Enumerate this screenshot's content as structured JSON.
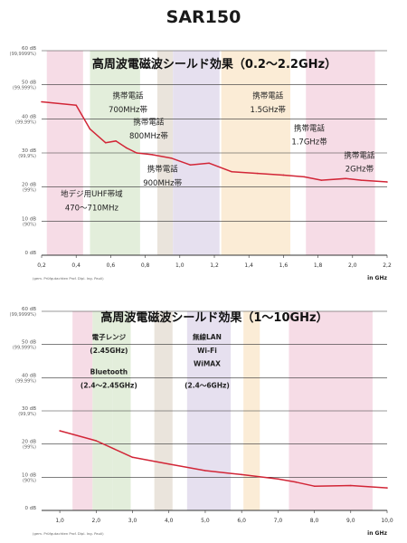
{
  "title": "SAR150",
  "colors": {
    "line": "#d22637",
    "grid": "#333333",
    "band_pink": "#f6dce6",
    "band_green": "#e3eedb",
    "band_beige": "#eae4dc",
    "band_lavender": "#e6e0ef",
    "band_peach": "#fbecd6"
  },
  "chart_data": [
    {
      "type": "line",
      "title": "高周波電磁波シールド効果（0.2～2.2GHz）",
      "x_unit": "in GHz",
      "credit": "(gem. Prüfgutachten Prof. Dipl. Ing. Pauli)",
      "xlim": [
        0.2,
        2.2
      ],
      "ylim": [
        0,
        60
      ],
      "x_ticks": [
        0.2,
        0.4,
        0.6,
        0.8,
        1.0,
        1.2,
        1.4,
        1.6,
        1.8,
        2.0,
        2.2
      ],
      "x_tick_labels": [
        "0,2",
        "0,4",
        "0,6",
        "0,8",
        "1,0",
        "1,2",
        "1,4",
        "1,6",
        "1,8",
        "2,0",
        "2,2"
      ],
      "y_ticks": [
        {
          "value": 0,
          "label": "0 dB",
          "sub": ""
        },
        {
          "value": 10,
          "label": "10 dB",
          "sub": "(90%)"
        },
        {
          "value": 20,
          "label": "20 dB",
          "sub": "(99%)"
        },
        {
          "value": 30,
          "label": "30 dB",
          "sub": "(99,9%)"
        },
        {
          "value": 40,
          "label": "40 dB",
          "sub": "(99,99%)"
        },
        {
          "value": 50,
          "label": "50 dB",
          "sub": "(99,999%)"
        },
        {
          "value": 60,
          "label": "60 dB",
          "sub": "(99,9999%)"
        }
      ],
      "bands": [
        {
          "x0": 0.23,
          "x1": 0.44,
          "color": "#f6dce6"
        },
        {
          "x0": 0.48,
          "x1": 0.77,
          "color": "#e3eedb"
        },
        {
          "x0": 0.87,
          "x1": 0.96,
          "color": "#eae4dc"
        },
        {
          "x0": 0.96,
          "x1": 1.23,
          "color": "#e6e0ef"
        },
        {
          "x0": 1.24,
          "x1": 1.64,
          "color": "#fbecd6"
        },
        {
          "x0": 1.73,
          "x1": 2.13,
          "color": "#f6dce6"
        }
      ],
      "series": [
        {
          "x": [
            0.2,
            0.4,
            0.48,
            0.57,
            0.63,
            0.69,
            0.75,
            0.84,
            0.95,
            1.06,
            1.17,
            1.3,
            1.45,
            1.6,
            1.72,
            1.82,
            1.96,
            2.05,
            2.2
          ],
          "y": [
            45,
            44,
            37,
            33,
            33.5,
            31.5,
            30,
            29.5,
            28.5,
            26.5,
            27,
            24.5,
            24,
            23.5,
            23,
            22,
            22.5,
            22,
            21.5
          ]
        }
      ],
      "annotations": [
        {
          "x": 0.7,
          "y": 46,
          "text": "携帯電話",
          "bold": false
        },
        {
          "x": 0.7,
          "y": 42,
          "text": "700MHz帯",
          "bold": false
        },
        {
          "x": 0.82,
          "y": 38.3,
          "text": "携帯電話",
          "bold": false
        },
        {
          "x": 0.82,
          "y": 34.3,
          "text": "800MHz帯",
          "bold": false
        },
        {
          "x": 0.9,
          "y": 24.5,
          "text": "携帯電話",
          "bold": false
        },
        {
          "x": 0.9,
          "y": 20.5,
          "text": "900MHz帯",
          "bold": false
        },
        {
          "x": 1.51,
          "y": 46,
          "text": "携帯電話",
          "bold": false
        },
        {
          "x": 1.51,
          "y": 42,
          "text": "1.5GHz帯",
          "bold": false
        },
        {
          "x": 1.75,
          "y": 36.5,
          "text": "携帯電話",
          "bold": false
        },
        {
          "x": 1.75,
          "y": 32.5,
          "text": "1.7GHz帯",
          "bold": false
        },
        {
          "x": 2.04,
          "y": 28.5,
          "text": "携帯電話",
          "bold": false
        },
        {
          "x": 2.04,
          "y": 24.5,
          "text": "2GHz帯",
          "bold": false
        },
        {
          "x": 0.49,
          "y": 17.2,
          "text": "地デジ用UHF帯域",
          "bold": false
        },
        {
          "x": 0.49,
          "y": 13.2,
          "text": "470～710MHz",
          "bold": false
        }
      ]
    },
    {
      "type": "line",
      "title": "高周波電磁波シールド効果（1～10GHz）",
      "x_unit": "in GHz",
      "credit": "(gem. Prüfgutachten Prof. Dipl. Ing. Pauli)",
      "xlim": [
        0.5,
        10
      ],
      "ylim": [
        0,
        60
      ],
      "x_ticks": [
        1,
        2,
        3,
        4,
        5,
        6,
        7,
        8,
        9,
        10
      ],
      "x_tick_labels": [
        "1,0",
        "2,0",
        "3,0",
        "4,0",
        "5,0",
        "6,0",
        "7,0",
        "8,0",
        "9,0",
        "10,0"
      ],
      "y_ticks": [
        {
          "value": 0,
          "label": "0 dB",
          "sub": ""
        },
        {
          "value": 10,
          "label": "10 dB",
          "sub": "(90%)"
        },
        {
          "value": 20,
          "label": "20 dB",
          "sub": "(99%)"
        },
        {
          "value": 30,
          "label": "30 dB",
          "sub": "(99,9%)"
        },
        {
          "value": 40,
          "label": "40 dB",
          "sub": "(99,99%)"
        },
        {
          "value": 50,
          "label": "50 dB",
          "sub": "(99,999%)"
        },
        {
          "value": 60,
          "label": "60 dB",
          "sub": "(99,9999%)"
        }
      ],
      "bands": [
        {
          "x0": 1.35,
          "x1": 1.9,
          "color": "#f6dce6"
        },
        {
          "x0": 1.9,
          "x1": 2.45,
          "color": "#e3eedb"
        },
        {
          "x0": 2.45,
          "x1": 2.95,
          "color": "#e3eedb"
        },
        {
          "x0": 3.6,
          "x1": 4.1,
          "color": "#eae4dc"
        },
        {
          "x0": 4.5,
          "x1": 5.7,
          "color": "#e6e0ef"
        },
        {
          "x0": 6.05,
          "x1": 6.5,
          "color": "#fbecd6"
        },
        {
          "x0": 7.3,
          "x1": 9.6,
          "color": "#f6dce6"
        }
      ],
      "series": [
        {
          "x": [
            1.0,
            2.0,
            3.0,
            4.0,
            5.0,
            6.0,
            7.0,
            7.5,
            8.0,
            9.0,
            10.0
          ],
          "y": [
            24,
            21,
            16,
            14,
            12,
            10.8,
            9.5,
            8.5,
            7.3,
            7.5,
            6.8
          ]
        }
      ],
      "annotations": [
        {
          "x": 2.35,
          "y": 51.5,
          "text": "電子レンジ",
          "bold": true
        },
        {
          "x": 2.35,
          "y": 47.5,
          "text": "(2.45GHz)",
          "bold": true
        },
        {
          "x": 2.35,
          "y": 41,
          "text": "Bluetooth",
          "bold": true
        },
        {
          "x": 2.35,
          "y": 37,
          "text": "(2.4～2.45GHz)",
          "bold": true
        },
        {
          "x": 5.05,
          "y": 51.5,
          "text": "無線LAN",
          "bold": true
        },
        {
          "x": 5.05,
          "y": 47.5,
          "text": "Wi-Fi",
          "bold": true
        },
        {
          "x": 5.05,
          "y": 43.5,
          "text": "WiMAX",
          "bold": true
        },
        {
          "x": 5.05,
          "y": 37,
          "text": "(2.4～6GHz)",
          "bold": true
        }
      ]
    }
  ]
}
